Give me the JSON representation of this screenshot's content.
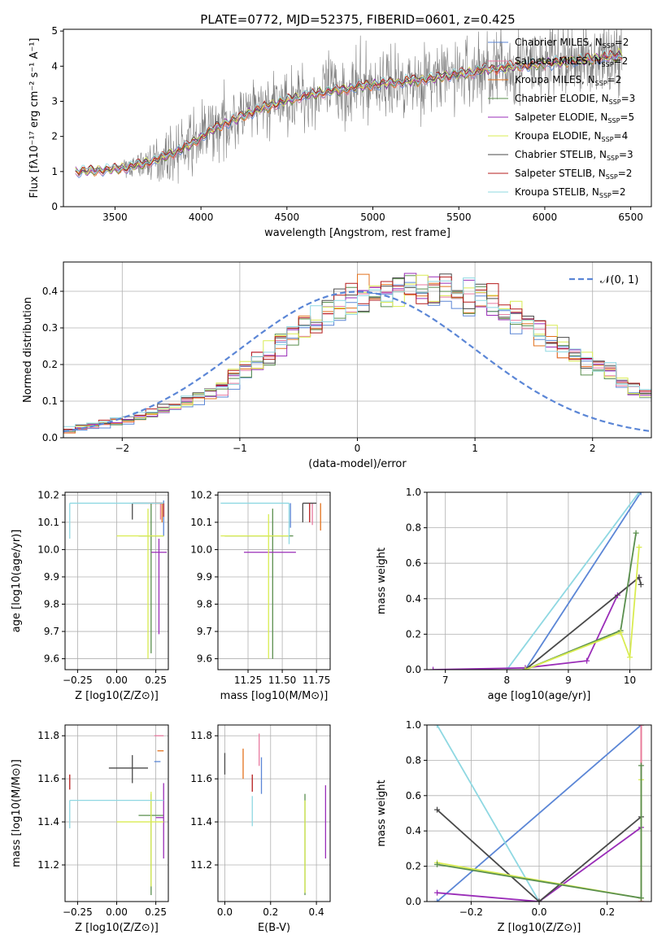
{
  "figure_title": "PLATE=0772, MJD=52375, FIBERID=0601, z=0.425",
  "colors": {
    "Chabrier MILES": "#5b86d6",
    "Salpeter MILES": "#e87aa0",
    "Kroupa MILES": "#e2711d",
    "Chabrier ELODIE": "#5a8f4e",
    "Salpeter ELODIE": "#9a2db8",
    "Kroupa ELODIE": "#d9ec52",
    "Chabrier STELIB": "#4a4a4a",
    "Salpeter STELIB": "#b51c1c",
    "Kroupa STELIB": "#8fd8e2",
    "data": "#7f7f7f",
    "normal": "#5b86d6"
  },
  "chart_data": [
    {
      "id": "spectrum",
      "type": "line",
      "title": "PLATE=0772, MJD=52375, FIBERID=0601, z=0.425",
      "xlabel": "wavelength [Angstrom, rest frame]",
      "ylabel": "Flux [fλ10⁻¹⁷ erg cm⁻² s⁻¹ A⁻¹]",
      "xlim": [
        3200,
        6620
      ],
      "ylim": [
        0,
        5.05
      ],
      "xticks": [
        3500,
        4000,
        4500,
        5000,
        5500,
        6000,
        6500
      ],
      "yticks": [
        0,
        1,
        2,
        3,
        4,
        5
      ],
      "legend_position": "top-right",
      "legend": [
        "Chabrier MILES, N_SSP=2",
        "Salpeter MILES, N_SSP=2",
        "Kroupa MILES, N_SSP=2",
        "Chabrier ELODIE, N_SSP=3",
        "Salpeter ELODIE, N_SSP=5",
        "Kroupa ELODIE, N_SSP=4",
        "Chabrier STELIB, N_SSP=3",
        "Salpeter STELIB, N_SSP=2",
        "Kroupa STELIB, N_SSP=2"
      ],
      "model_continuum": {
        "x": [
          3270,
          3350,
          3450,
          3550,
          3650,
          3750,
          3850,
          3950,
          4050,
          4150,
          4250,
          4350,
          4450,
          4550,
          4650,
          4750,
          4850,
          4950,
          5050,
          5150,
          5250,
          5350,
          5450,
          5550,
          5650,
          5750,
          5850,
          5950,
          6050,
          6150,
          6250,
          6350,
          6450
        ],
        "y": [
          1.0,
          1.02,
          1.05,
          1.1,
          1.2,
          1.35,
          1.55,
          1.8,
          2.15,
          2.4,
          2.6,
          2.8,
          2.95,
          3.1,
          3.2,
          3.3,
          3.35,
          3.45,
          3.5,
          3.55,
          3.6,
          3.65,
          3.75,
          3.8,
          3.9,
          3.95,
          4.0,
          4.05,
          4.1,
          4.15,
          4.2,
          4.25,
          4.3
        ]
      },
      "model_spread": {
        "x": [
          3270,
          3500,
          4000,
          4500,
          5000,
          5500,
          6000,
          6450
        ],
        "y": [
          0.03,
          0.04,
          0.08,
          0.12,
          0.1,
          0.15,
          0.18,
          0.22
        ]
      },
      "data_noise_amplitude": {
        "x": [
          3270,
          3500,
          3600,
          3800,
          4000,
          4200,
          4400,
          4600,
          4800,
          5000,
          5200,
          5400,
          5600,
          5800,
          6000,
          6200,
          6450
        ],
        "y": [
          0.02,
          0.04,
          0.3,
          0.6,
          0.9,
          0.8,
          0.75,
          0.85,
          1.0,
          0.9,
          0.9,
          0.9,
          1.0,
          1.1,
          1.0,
          0.9,
          0.9
        ]
      }
    },
    {
      "id": "residual_hist",
      "type": "line",
      "xlabel": "(data-model)/error",
      "ylabel": "Normed distribution",
      "xlim": [
        -2.5,
        2.5
      ],
      "ylim": [
        0,
        0.48
      ],
      "xticks": [
        -2,
        -1,
        0,
        1,
        2
      ],
      "yticks": [
        0.0,
        0.1,
        0.2,
        0.3,
        0.4
      ],
      "legend_position": "top-right",
      "legend": [
        "𝒩(0, 1)"
      ],
      "bin_width": 0.1,
      "bins_start": -2.5,
      "base_hist": [
        0.02,
        0.03,
        0.035,
        0.04,
        0.045,
        0.05,
        0.055,
        0.065,
        0.075,
        0.085,
        0.1,
        0.115,
        0.125,
        0.14,
        0.165,
        0.185,
        0.205,
        0.23,
        0.26,
        0.28,
        0.3,
        0.32,
        0.34,
        0.36,
        0.37,
        0.38,
        0.39,
        0.395,
        0.4,
        0.405,
        0.405,
        0.405,
        0.4,
        0.395,
        0.385,
        0.375,
        0.36,
        0.345,
        0.33,
        0.31,
        0.29,
        0.27,
        0.25,
        0.23,
        0.21,
        0.19,
        0.17,
        0.15,
        0.135,
        0.12,
        0.105,
        0.095,
        0.085,
        0.075,
        0.065,
        0.06,
        0.055,
        0.05,
        0.045,
        0.04,
        0.035,
        0.03,
        0.03,
        0.025,
        0.02,
        0.02,
        0.015,
        0.015,
        0.01,
        0.01
      ],
      "normal_curve": {
        "mean": 0,
        "sigma": 1
      }
    },
    {
      "id": "age_vs_Z",
      "type": "scatter",
      "xlabel": "Z [log10(Z/Z⊙)]",
      "ylabel": "age  [log10(age/yr)]",
      "xlim": [
        -0.33,
        0.33
      ],
      "ylim": [
        9.56,
        10.21
      ],
      "xticks": [
        -0.25,
        0.0,
        0.25
      ],
      "yticks": [
        9.6,
        9.7,
        9.8,
        9.9,
        10.0,
        10.1,
        10.2
      ],
      "points": [
        {
          "model": "Chabrier MILES",
          "x": 0.3,
          "y": 10.1,
          "xerr": [
            0.0,
            0.0
          ],
          "yerr": [
            0.05,
            0.08
          ]
        },
        {
          "model": "Salpeter MILES",
          "x": 0.28,
          "y": 10.17,
          "xerr": [
            0.06,
            0.0
          ],
          "yerr": [
            0.06,
            0.0
          ]
        },
        {
          "model": "Kroupa MILES",
          "x": 0.29,
          "y": 10.17,
          "xerr": [
            0.04,
            0.0
          ],
          "yerr": [
            0.07,
            0.0
          ]
        },
        {
          "model": "Chabrier ELODIE",
          "x": 0.22,
          "y": 10.05,
          "xerr": [
            0.08,
            0.08
          ],
          "yerr": [
            0.43,
            0.12
          ]
        },
        {
          "model": "Salpeter ELODIE",
          "x": 0.27,
          "y": 9.99,
          "xerr": [
            0.05,
            0.05
          ],
          "yerr": [
            0.3,
            0.05
          ]
        },
        {
          "model": "Kroupa ELODIE",
          "x": 0.2,
          "y": 10.05,
          "xerr": [
            0.2,
            0.1
          ],
          "yerr": [
            0.45,
            0.1
          ]
        },
        {
          "model": "Chabrier STELIB",
          "x": 0.1,
          "y": 10.17,
          "xerr": [
            0.0,
            0.1
          ],
          "yerr": [
            0.06,
            0.0
          ]
        },
        {
          "model": "Salpeter STELIB",
          "x": 0.3,
          "y": 10.17,
          "xerr": [
            0.1,
            0.0
          ],
          "yerr": [
            0.05,
            0.0
          ]
        },
        {
          "model": "Kroupa STELIB",
          "x": -0.3,
          "y": 10.17,
          "xerr": [
            0.0,
            0.6
          ],
          "yerr": [
            0.13,
            0.0
          ]
        }
      ]
    },
    {
      "id": "age_vs_mass",
      "type": "scatter",
      "xlabel": "mass [log10(M/M⊙)]",
      "ylabel": "",
      "xlim": [
        11.03,
        11.85
      ],
      "ylim": [
        9.56,
        10.21
      ],
      "xticks": [
        11.25,
        11.5,
        11.75
      ],
      "yticks": [
        9.6,
        9.7,
        9.8,
        9.9,
        10.0,
        10.1,
        10.2
      ],
      "points": [
        {
          "model": "Chabrier MILES",
          "x": 11.56,
          "y": 10.17,
          "xerr": [
            0.0,
            0.0
          ],
          "yerr": [
            0.09,
            0.0
          ]
        },
        {
          "model": "Salpeter MILES",
          "x": 11.72,
          "y": 10.17,
          "xerr": [
            0.0,
            0.0
          ],
          "yerr": [
            0.08,
            0.0
          ]
        },
        {
          "model": "Kroupa MILES",
          "x": 11.78,
          "y": 10.17,
          "xerr": [
            0.0,
            0.0
          ],
          "yerr": [
            0.1,
            0.0
          ]
        },
        {
          "model": "Chabrier ELODIE",
          "x": 11.43,
          "y": 10.05,
          "xerr": [
            0.35,
            0.15
          ],
          "yerr": [
            0.45,
            0.1
          ]
        },
        {
          "model": "Salpeter ELODIE",
          "x": 11.4,
          "y": 9.99,
          "xerr": [
            0.18,
            0.2
          ],
          "yerr": [
            0.0,
            0.0
          ]
        },
        {
          "model": "Kroupa ELODIE",
          "x": 11.4,
          "y": 10.05,
          "xerr": [
            0.35,
            0.15
          ],
          "yerr": [
            0.45,
            0.08
          ]
        },
        {
          "model": "Chabrier STELIB",
          "x": 11.65,
          "y": 10.17,
          "xerr": [
            0.0,
            0.1
          ],
          "yerr": [
            0.07,
            0.0
          ]
        },
        {
          "model": "Salpeter STELIB",
          "x": 11.7,
          "y": 10.17,
          "xerr": [
            0.0,
            0.0
          ],
          "yerr": [
            0.07,
            0.0
          ]
        },
        {
          "model": "Kroupa STELIB",
          "x": 11.55,
          "y": 10.17,
          "xerr": [
            0.5,
            0.0
          ],
          "yerr": [
            0.15,
            0.0
          ]
        }
      ]
    },
    {
      "id": "mass_weight_vs_age",
      "type": "line",
      "xlabel": "age  [log10(age/yr)]",
      "ylabel": "mass weight",
      "xlim": [
        6.7,
        10.35
      ],
      "ylim": [
        0,
        1.0
      ],
      "xticks": [
        7,
        8,
        9,
        10
      ],
      "yticks": [
        0.0,
        0.2,
        0.4,
        0.6,
        0.8,
        1.0
      ],
      "series": [
        {
          "model": "Chabrier MILES",
          "x": [
            8.3,
            10.18
          ],
          "y": [
            0.0,
            1.0
          ]
        },
        {
          "model": "Kroupa STELIB",
          "x": [
            8.0,
            10.15
          ],
          "y": [
            0.0,
            1.0
          ]
        },
        {
          "model": "Salpeter ELODIE",
          "x": [
            6.8,
            8.3,
            9.3,
            9.8,
            10.15
          ],
          "y": [
            0.0,
            0.01,
            0.05,
            0.42,
            0.52
          ]
        },
        {
          "model": "Chabrier STELIB",
          "x": [
            8.3,
            10.15,
            10.18
          ],
          "y": [
            0.0,
            0.52,
            0.48
          ]
        },
        {
          "model": "Chabrier ELODIE",
          "x": [
            8.3,
            9.85,
            10.1
          ],
          "y": [
            0.0,
            0.22,
            0.77
          ]
        },
        {
          "model": "Kroupa ELODIE",
          "x": [
            8.3,
            9.85,
            10.0,
            10.15
          ],
          "y": [
            0.0,
            0.21,
            0.07,
            0.69
          ]
        }
      ]
    },
    {
      "id": "mass_vs_Z",
      "type": "scatter",
      "xlabel": "Z [log10(Z/Z⊙)]",
      "ylabel": "mass [log10(M/M⊙)]",
      "xlim": [
        -0.33,
        0.33
      ],
      "ylim": [
        11.03,
        11.85
      ],
      "xticks": [
        -0.25,
        0.0,
        0.25
      ],
      "yticks": [
        11.2,
        11.4,
        11.6,
        11.8
      ],
      "points": [
        {
          "model": "Chabrier MILES",
          "x": 0.28,
          "y": 11.68,
          "xerr": [
            0.04,
            0.0
          ],
          "yerr": [
            0.0,
            0.0
          ]
        },
        {
          "model": "Salpeter MILES",
          "x": 0.3,
          "y": 11.8,
          "xerr": [
            0.06,
            0.0
          ],
          "yerr": [
            0.0,
            0.0
          ]
        },
        {
          "model": "Kroupa MILES",
          "x": 0.3,
          "y": 11.73,
          "xerr": [
            0.04,
            0.0
          ],
          "yerr": [
            0.0,
            0.0
          ]
        },
        {
          "model": "Chabrier ELODIE",
          "x": 0.22,
          "y": 11.43,
          "xerr": [
            0.08,
            0.08
          ],
          "yerr": [
            0.37,
            0.1
          ]
        },
        {
          "model": "Salpeter ELODIE",
          "x": 0.3,
          "y": 11.42,
          "xerr": [
            0.05,
            0.0
          ],
          "yerr": [
            0.19,
            0.16
          ]
        },
        {
          "model": "Kroupa ELODIE",
          "x": 0.22,
          "y": 11.4,
          "xerr": [
            0.22,
            0.08
          ],
          "yerr": [
            0.3,
            0.14
          ]
        },
        {
          "model": "Chabrier STELIB",
          "x": 0.1,
          "y": 11.65,
          "xerr": [
            0.15,
            0.1
          ],
          "yerr": [
            0.07,
            0.06
          ]
        },
        {
          "model": "Salpeter STELIB",
          "x": -0.3,
          "y": 11.58,
          "xerr": [
            0.0,
            0.0
          ],
          "yerr": [
            0.03,
            0.04
          ]
        },
        {
          "model": "Kroupa STELIB",
          "x": -0.3,
          "y": 11.5,
          "xerr": [
            0.0,
            0.6
          ],
          "yerr": [
            0.13,
            0.0
          ]
        }
      ]
    },
    {
      "id": "mass_vs_ebv",
      "type": "scatter",
      "xlabel": "E(B-V)",
      "ylabel": "",
      "xlim": [
        -0.03,
        0.46
      ],
      "ylim": [
        11.03,
        11.85
      ],
      "xticks": [
        0.0,
        0.2,
        0.4
      ],
      "yticks": [
        11.2,
        11.4,
        11.6,
        11.8
      ],
      "points": [
        {
          "model": "Chabrier MILES",
          "x": 0.16,
          "y": 11.6,
          "xerr": [
            0.0,
            0.0
          ],
          "yerr": [
            0.07,
            0.1
          ]
        },
        {
          "model": "Salpeter MILES",
          "x": 0.15,
          "y": 11.73,
          "xerr": [
            0.0,
            0.0
          ],
          "yerr": [
            0.07,
            0.08
          ]
        },
        {
          "model": "Kroupa MILES",
          "x": 0.08,
          "y": 11.67,
          "xerr": [
            0.0,
            0.0
          ],
          "yerr": [
            0.07,
            0.07
          ]
        },
        {
          "model": "Chabrier ELODIE",
          "x": 0.35,
          "y": 11.3,
          "xerr": [
            0.0,
            0.0
          ],
          "yerr": [
            0.24,
            0.23
          ]
        },
        {
          "model": "Salpeter ELODIE",
          "x": 0.44,
          "y": 11.4,
          "xerr": [
            0.0,
            0.0
          ],
          "yerr": [
            0.17,
            0.17
          ]
        },
        {
          "model": "Kroupa ELODIE",
          "x": 0.35,
          "y": 11.3,
          "xerr": [
            0.0,
            0.0
          ],
          "yerr": [
            0.23,
            0.2
          ]
        },
        {
          "model": "Chabrier STELIB",
          "x": 0.0,
          "y": 11.67,
          "xerr": [
            0.0,
            0.0
          ],
          "yerr": [
            0.05,
            0.05
          ]
        },
        {
          "model": "Salpeter STELIB",
          "x": 0.12,
          "y": 11.58,
          "xerr": [
            0.0,
            0.0
          ],
          "yerr": [
            0.04,
            0.04
          ]
        },
        {
          "model": "Kroupa STELIB",
          "x": 0.12,
          "y": 11.46,
          "xerr": [
            0.0,
            0.0
          ],
          "yerr": [
            0.08,
            0.06
          ]
        }
      ]
    },
    {
      "id": "mass_weight_vs_Z",
      "type": "line",
      "xlabel": "Z [log10(Z/Z⊙)]",
      "ylabel": "mass weight",
      "xlim": [
        -0.33,
        0.33
      ],
      "ylim": [
        0,
        1.0
      ],
      "xticks": [
        -0.2,
        0.0,
        0.2
      ],
      "yticks": [
        0.0,
        0.2,
        0.4,
        0.6,
        0.8,
        1.0
      ],
      "series": [
        {
          "model": "Chabrier MILES",
          "x": [
            -0.3,
            0.3
          ],
          "y": [
            0.0,
            1.0
          ]
        },
        {
          "model": "Kroupa STELIB",
          "x": [
            -0.3,
            0.0
          ],
          "y": [
            1.0,
            0.0
          ]
        },
        {
          "model": "Kroupa MILES",
          "x": [
            0.3,
            0.3
          ],
          "y": [
            0.0,
            1.0
          ]
        },
        {
          "model": "Salpeter MILES",
          "x": [
            0.3,
            0.3
          ],
          "y": [
            0.0,
            1.0
          ]
        },
        {
          "model": "Salpeter ELODIE",
          "x": [
            -0.3,
            0.0,
            0.3
          ],
          "y": [
            0.05,
            0.0,
            0.42
          ]
        },
        {
          "model": "Chabrier STELIB",
          "x": [
            -0.3,
            0.0,
            0.3
          ],
          "y": [
            0.52,
            0.0,
            0.48
          ]
        },
        {
          "model": "Kroupa ELODIE",
          "x": [
            -0.3,
            0.3,
            0.3
          ],
          "y": [
            0.22,
            0.02,
            0.69
          ]
        },
        {
          "model": "Chabrier ELODIE",
          "x": [
            -0.3,
            0.3,
            0.3
          ],
          "y": [
            0.21,
            0.02,
            0.77
          ]
        }
      ]
    }
  ]
}
